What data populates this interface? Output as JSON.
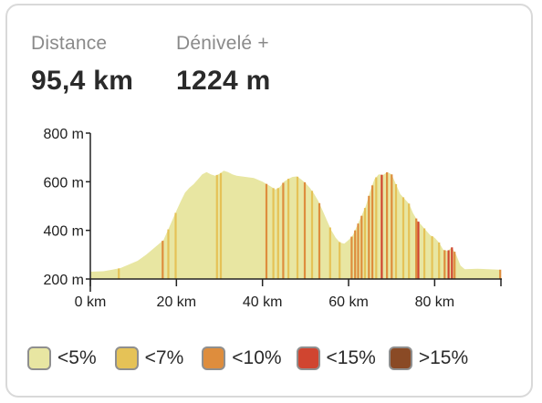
{
  "stats": {
    "distance": {
      "label": "Distance",
      "value": "95,4 km"
    },
    "elevation": {
      "label": "Dénivelé +",
      "value": "1224 m"
    }
  },
  "legend": [
    {
      "label": "<5%",
      "color": "#e8e6a2"
    },
    {
      "label": "<7%",
      "color": "#e5c257"
    },
    {
      "label": "<10%",
      "color": "#de8d3d"
    },
    {
      "label": "<15%",
      "color": "#d04530"
    },
    {
      "label": ">15%",
      "color": "#8a4a25"
    }
  ],
  "chart_data": {
    "type": "area",
    "xlabel": "",
    "ylabel": "",
    "xlim": [
      0,
      95.4
    ],
    "ylim": [
      200,
      800
    ],
    "x_ticks": [
      "0 km",
      "20 km",
      "40 km",
      "60 km",
      "80 km"
    ],
    "x_tick_values": [
      0,
      20,
      40,
      60,
      80
    ],
    "y_ticks": [
      "200 m",
      "400 m",
      "600 m",
      "800 m"
    ],
    "y_tick_values": [
      200,
      400,
      600,
      800
    ],
    "profile": [
      [
        0,
        230
      ],
      [
        3,
        232
      ],
      [
        5,
        238
      ],
      [
        7,
        245
      ],
      [
        9,
        260
      ],
      [
        11,
        275
      ],
      [
        13,
        300
      ],
      [
        15,
        330
      ],
      [
        17,
        360
      ],
      [
        18,
        400
      ],
      [
        19,
        440
      ],
      [
        20,
        480
      ],
      [
        21,
        520
      ],
      [
        22,
        555
      ],
      [
        23,
        575
      ],
      [
        24,
        590
      ],
      [
        25,
        610
      ],
      [
        26,
        630
      ],
      [
        27,
        640
      ],
      [
        28,
        630
      ],
      [
        29,
        625
      ],
      [
        30,
        632
      ],
      [
        31,
        645
      ],
      [
        32,
        640
      ],
      [
        33,
        630
      ],
      [
        34,
        625
      ],
      [
        36,
        620
      ],
      [
        38,
        615
      ],
      [
        40,
        600
      ],
      [
        41,
        590
      ],
      [
        42,
        580
      ],
      [
        43,
        568
      ],
      [
        44,
        578
      ],
      [
        45,
        600
      ],
      [
        46,
        612
      ],
      [
        47,
        620
      ],
      [
        48,
        622
      ],
      [
        49,
        610
      ],
      [
        50,
        595
      ],
      [
        51,
        575
      ],
      [
        52,
        550
      ],
      [
        53,
        520
      ],
      [
        54,
        480
      ],
      [
        55,
        440
      ],
      [
        56,
        400
      ],
      [
        57,
        370
      ],
      [
        58,
        350
      ],
      [
        59,
        345
      ],
      [
        60,
        360
      ],
      [
        61,
        380
      ],
      [
        62,
        420
      ],
      [
        63,
        460
      ],
      [
        64,
        500
      ],
      [
        65,
        560
      ],
      [
        66,
        610
      ],
      [
        67,
        630
      ],
      [
        68,
        628
      ],
      [
        69,
        640
      ],
      [
        70,
        630
      ],
      [
        71,
        590
      ],
      [
        72,
        550
      ],
      [
        73,
        530
      ],
      [
        74,
        510
      ],
      [
        75,
        470
      ],
      [
        76,
        440
      ],
      [
        77,
        420
      ],
      [
        78,
        400
      ],
      [
        79,
        380
      ],
      [
        80,
        370
      ],
      [
        81,
        350
      ],
      [
        82,
        320
      ],
      [
        83,
        315
      ],
      [
        84,
        330
      ],
      [
        85,
        300
      ],
      [
        86,
        255
      ],
      [
        87,
        240
      ],
      [
        90,
        242
      ],
      [
        95.4,
        238
      ]
    ],
    "grade_bands": [
      {
        "x": 6.6,
        "class": "<7%"
      },
      {
        "x": 16.8,
        "class": "<10%"
      },
      {
        "x": 18.1,
        "class": "<7%"
      },
      {
        "x": 19.8,
        "class": "<7%"
      },
      {
        "x": 29.4,
        "class": "<7%"
      },
      {
        "x": 30.3,
        "class": "<7%"
      },
      {
        "x": 40.9,
        "class": "<10%"
      },
      {
        "x": 42.5,
        "class": "<7%"
      },
      {
        "x": 43.6,
        "class": "<7%"
      },
      {
        "x": 44.8,
        "class": "<10%"
      },
      {
        "x": 46.0,
        "class": "<7%"
      },
      {
        "x": 48.1,
        "class": "<7%"
      },
      {
        "x": 49.8,
        "class": "<10%"
      },
      {
        "x": 51.5,
        "class": "<7%"
      },
      {
        "x": 53.2,
        "class": "<10%"
      },
      {
        "x": 55.7,
        "class": "<7%"
      },
      {
        "x": 57.9,
        "class": "<7%"
      },
      {
        "x": 60.7,
        "class": "<10%"
      },
      {
        "x": 61.5,
        "class": "<10%"
      },
      {
        "x": 62.2,
        "class": "<10%"
      },
      {
        "x": 63.0,
        "class": "<10%"
      },
      {
        "x": 63.8,
        "class": "<7%"
      },
      {
        "x": 64.7,
        "class": "<10%"
      },
      {
        "x": 65.5,
        "class": "<10%"
      },
      {
        "x": 66.4,
        "class": "<7%"
      },
      {
        "x": 67.7,
        "class": "<15%"
      },
      {
        "x": 68.9,
        "class": "<10%"
      },
      {
        "x": 70.0,
        "class": "<10%"
      },
      {
        "x": 71.0,
        "class": "<7%"
      },
      {
        "x": 72.7,
        "class": "<7%"
      },
      {
        "x": 74.0,
        "class": "<7%"
      },
      {
        "x": 75.7,
        "class": "<10%"
      },
      {
        "x": 76.2,
        "class": "<15%"
      },
      {
        "x": 77.6,
        "class": "<7%"
      },
      {
        "x": 79.4,
        "class": "<7%"
      },
      {
        "x": 81.0,
        "class": "<7%"
      },
      {
        "x": 82.3,
        "class": "<10%"
      },
      {
        "x": 83.2,
        "class": "<15%"
      },
      {
        "x": 84.0,
        "class": "<15%"
      },
      {
        "x": 84.6,
        "class": "<10%"
      },
      {
        "x": 95.2,
        "class": "<10%"
      }
    ]
  }
}
